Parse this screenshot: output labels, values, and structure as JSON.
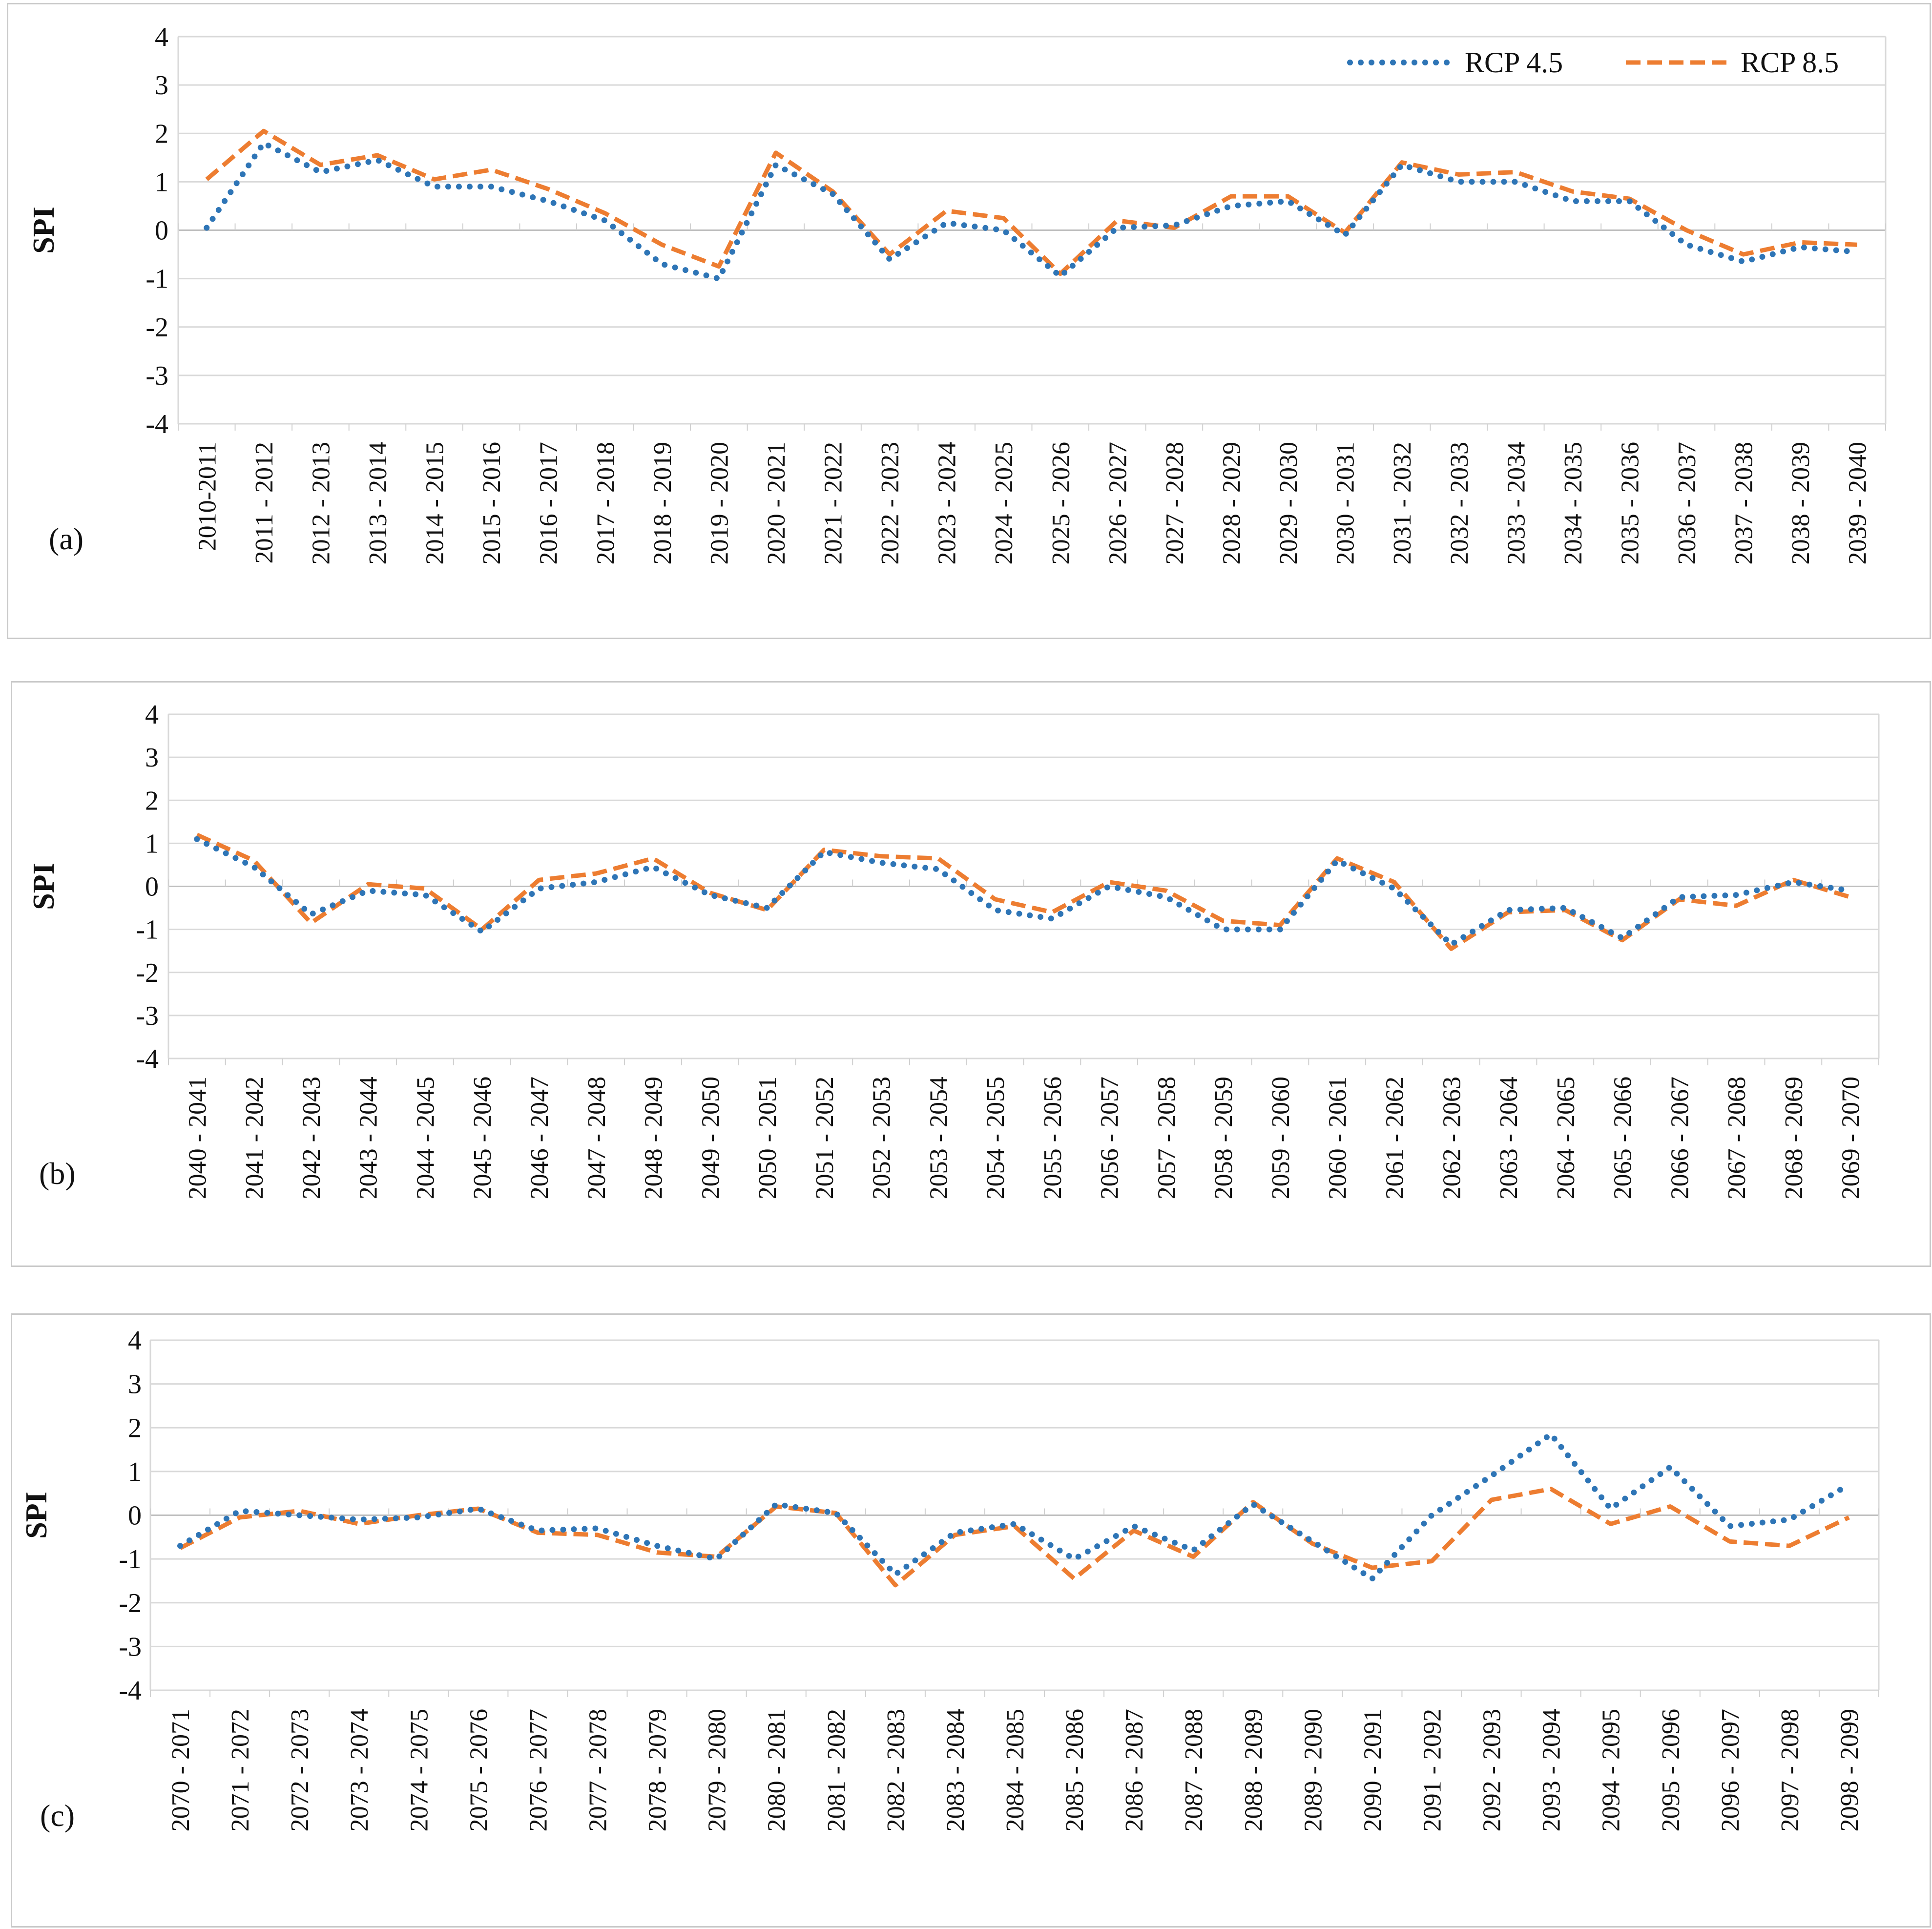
{
  "chart_data": [
    {
      "type": "line",
      "panel_label": "(a)",
      "ylabel": "SPI",
      "ylim": [
        -4,
        4
      ],
      "yticks": [
        4,
        3,
        2,
        1,
        0,
        -1,
        -2,
        -3,
        -4
      ],
      "grid": true,
      "legend": "top-right",
      "categories": [
        "2010-2011",
        "2011 - 2012",
        "2012 - 2013",
        "2013 - 2014",
        "2014 - 2015",
        "2015 - 2016",
        "2016 - 2017",
        "2017 - 2018",
        "2018 - 2019",
        "2019 - 2020",
        "2020 - 2021",
        "2021 - 2022",
        "2022 - 2023",
        "2023 - 2024",
        "2024 - 2025",
        "2025 - 2026",
        "2026 - 2027",
        "2027 - 2028",
        "2028 - 2029",
        "2029 - 2030",
        "2030 - 2031",
        "2031 - 2032",
        "2032 - 2033",
        "2033 - 2034",
        "2034 - 2035",
        "2035 - 2036",
        "2036 - 2037",
        "2037 - 2038",
        "2038 - 2039",
        "2039 - 2040"
      ],
      "series": [
        {
          "name": "RCP 4.5",
          "style": "dotted",
          "color": "#2E75B6",
          "values": [
            0.05,
            1.8,
            1.2,
            1.45,
            0.9,
            0.9,
            0.6,
            0.2,
            -0.7,
            -1.0,
            1.35,
            0.75,
            -0.6,
            0.15,
            0.0,
            -0.95,
            0.05,
            0.1,
            0.5,
            0.6,
            -0.1,
            1.35,
            1.0,
            1.0,
            0.6,
            0.6,
            -0.3,
            -0.65,
            -0.35,
            -0.45
          ]
        },
        {
          "name": "RCP 8.5",
          "style": "dashed",
          "color": "#ED7D31",
          "values": [
            1.05,
            2.05,
            1.35,
            1.55,
            1.05,
            1.25,
            0.85,
            0.35,
            -0.3,
            -0.75,
            1.6,
            0.8,
            -0.5,
            0.4,
            0.25,
            -0.9,
            0.2,
            0.05,
            0.7,
            0.7,
            -0.05,
            1.4,
            1.15,
            1.2,
            0.8,
            0.65,
            0.0,
            -0.5,
            -0.25,
            -0.3
          ]
        }
      ]
    },
    {
      "type": "line",
      "panel_label": "(b)",
      "ylabel": "SPI",
      "ylim": [
        -4,
        4
      ],
      "yticks": [
        4,
        3,
        2,
        1,
        0,
        -1,
        -2,
        -3,
        -4
      ],
      "grid": true,
      "categories": [
        "2040 - 2041",
        "2041 - 2042",
        "2042 - 2043",
        "2043 - 2044",
        "2044 - 2045",
        "2045 - 2046",
        "2046 - 2047",
        "2047 - 2048",
        "2048 - 2049",
        "2049 - 2050",
        "2050 - 2051",
        "2051 - 2052",
        "2052 - 2053",
        "2053 - 2054",
        "2054 - 2055",
        "2055 - 2056",
        "2056 - 2057",
        "2057 - 2058",
        "2058 - 2059",
        "2059 - 2060",
        "2060 - 2061",
        "2061 - 2062",
        "2062 - 2063",
        "2063 - 2064",
        "2064 - 2065",
        "2065 - 2066",
        "2066 - 2067",
        "2067 - 2068",
        "2068 - 2069",
        "2069 - 2070"
      ],
      "series": [
        {
          "name": "RCP 4.5",
          "style": "dotted",
          "color": "#2E75B6",
          "values": [
            1.1,
            0.45,
            -0.65,
            -0.1,
            -0.2,
            -1.05,
            -0.05,
            0.1,
            0.45,
            -0.2,
            -0.5,
            0.8,
            0.55,
            0.4,
            -0.55,
            -0.75,
            0.0,
            -0.25,
            -1.0,
            -1.0,
            0.6,
            -0.05,
            -1.35,
            -0.55,
            -0.5,
            -1.2,
            -0.25,
            -0.2,
            0.1,
            -0.1
          ]
        },
        {
          "name": "RCP 8.5",
          "style": "dashed",
          "color": "#ED7D31",
          "values": [
            1.2,
            0.6,
            -0.85,
            0.05,
            -0.05,
            -1.0,
            0.15,
            0.3,
            0.65,
            -0.15,
            -0.55,
            0.85,
            0.7,
            0.65,
            -0.3,
            -0.6,
            0.1,
            -0.1,
            -0.8,
            -0.9,
            0.65,
            0.1,
            -1.45,
            -0.6,
            -0.55,
            -1.25,
            -0.3,
            -0.45,
            0.15,
            -0.25
          ]
        }
      ]
    },
    {
      "type": "line",
      "panel_label": "(c)",
      "ylabel": "SPI",
      "ylim": [
        -4,
        4
      ],
      "yticks": [
        4,
        3,
        2,
        1,
        0,
        -1,
        -2,
        -3,
        -4
      ],
      "grid": true,
      "categories": [
        "2070 - 2071",
        "2071 - 2072",
        "2072 - 2073",
        "2073 - 2074",
        "2074 - 2075",
        "2075 - 2076",
        "2076 - 2077",
        "2077 - 2078",
        "2078 - 2079",
        "2079 - 2080",
        "2080 - 2081",
        "2081 - 2082",
        "2082 - 2083",
        "2083 - 2084",
        "2084 - 2085",
        "2085 - 2086",
        "2086 - 2087",
        "2087 - 2088",
        "2088 - 2089",
        "2089 - 2090",
        "2090 - 2091",
        "2091 - 2092",
        "2092 - 2093",
        "2093 - 2094",
        "2094 - 2095",
        "2095 - 2096",
        "2096 - 2097",
        "2097 - 2098",
        "2098 - 2099"
      ],
      "series": [
        {
          "name": "RCP 4.5",
          "style": "dotted",
          "color": "#2E75B6",
          "values": [
            -0.7,
            0.1,
            0.0,
            -0.1,
            -0.05,
            0.15,
            -0.35,
            -0.3,
            -0.7,
            -1.0,
            0.25,
            0.05,
            -1.35,
            -0.4,
            -0.2,
            -1.0,
            -0.25,
            -0.8,
            0.25,
            -0.6,
            -1.45,
            0.0,
            0.9,
            1.85,
            0.15,
            1.1,
            -0.25,
            -0.1,
            0.7
          ]
        },
        {
          "name": "RCP 8.5",
          "style": "dashed",
          "color": "#ED7D31",
          "values": [
            -0.75,
            -0.05,
            0.1,
            -0.2,
            0.0,
            0.15,
            -0.4,
            -0.45,
            -0.85,
            -0.95,
            0.2,
            0.05,
            -1.6,
            -0.45,
            -0.25,
            -1.45,
            -0.35,
            -0.95,
            0.3,
            -0.65,
            -1.2,
            -1.05,
            0.35,
            0.6,
            -0.2,
            0.2,
            -0.6,
            -0.7,
            -0.05
          ]
        }
      ]
    }
  ]
}
